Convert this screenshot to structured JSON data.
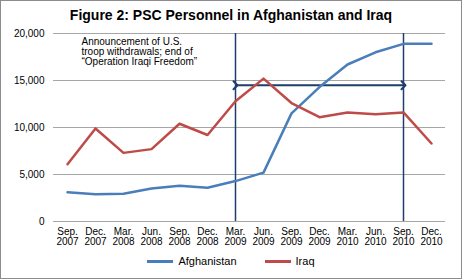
{
  "chart_data": {
    "type": "line",
    "title": "Figure 2: PSC Personnel in Afghanistan and Iraq",
    "categories": [
      "Sep. 2007",
      "Dec. 2007",
      "Mar. 2008",
      "Jun. 2008",
      "Sep. 2008",
      "Dec. 2008",
      "Mar. 2009",
      "Jun. 2009",
      "Sep. 2009",
      "Dec. 2009",
      "Mar. 2010",
      "Jun. 2010",
      "Sep. 2010",
      "Dec. 2010"
    ],
    "series": [
      {
        "name": "Afghanistan",
        "color": "#4a7ebb",
        "values": [
          3100,
          2900,
          2950,
          3500,
          3800,
          3600,
          4300,
          5200,
          11500,
          14300,
          16700,
          18000,
          18900,
          18900
        ]
      },
      {
        "name": "Iraq",
        "color": "#be4b48",
        "values": [
          6100,
          9900,
          7300,
          7700,
          10400,
          9200,
          12800,
          15200,
          12600,
          11100,
          11600,
          11400,
          11600,
          8300
        ]
      }
    ],
    "ylim": [
      0,
      20000
    ],
    "yticks": [
      0,
      {
        "value": 5000,
        "label": "5,000"
      },
      {
        "value": 10000,
        "label": "10,000"
      },
      {
        "value": 15000,
        "label": "15,000"
      },
      {
        "value": 20000,
        "label": "20,000"
      }
    ],
    "grid": true,
    "legend": "bottom",
    "annotations": [
      {
        "text": "Announcement of U.S. troop withdrawals; end of “Operation Iraqi Freedom”",
        "x": [
          "Mar. 2009",
          "Sep. 2010"
        ],
        "y": 14500
      }
    ]
  }
}
